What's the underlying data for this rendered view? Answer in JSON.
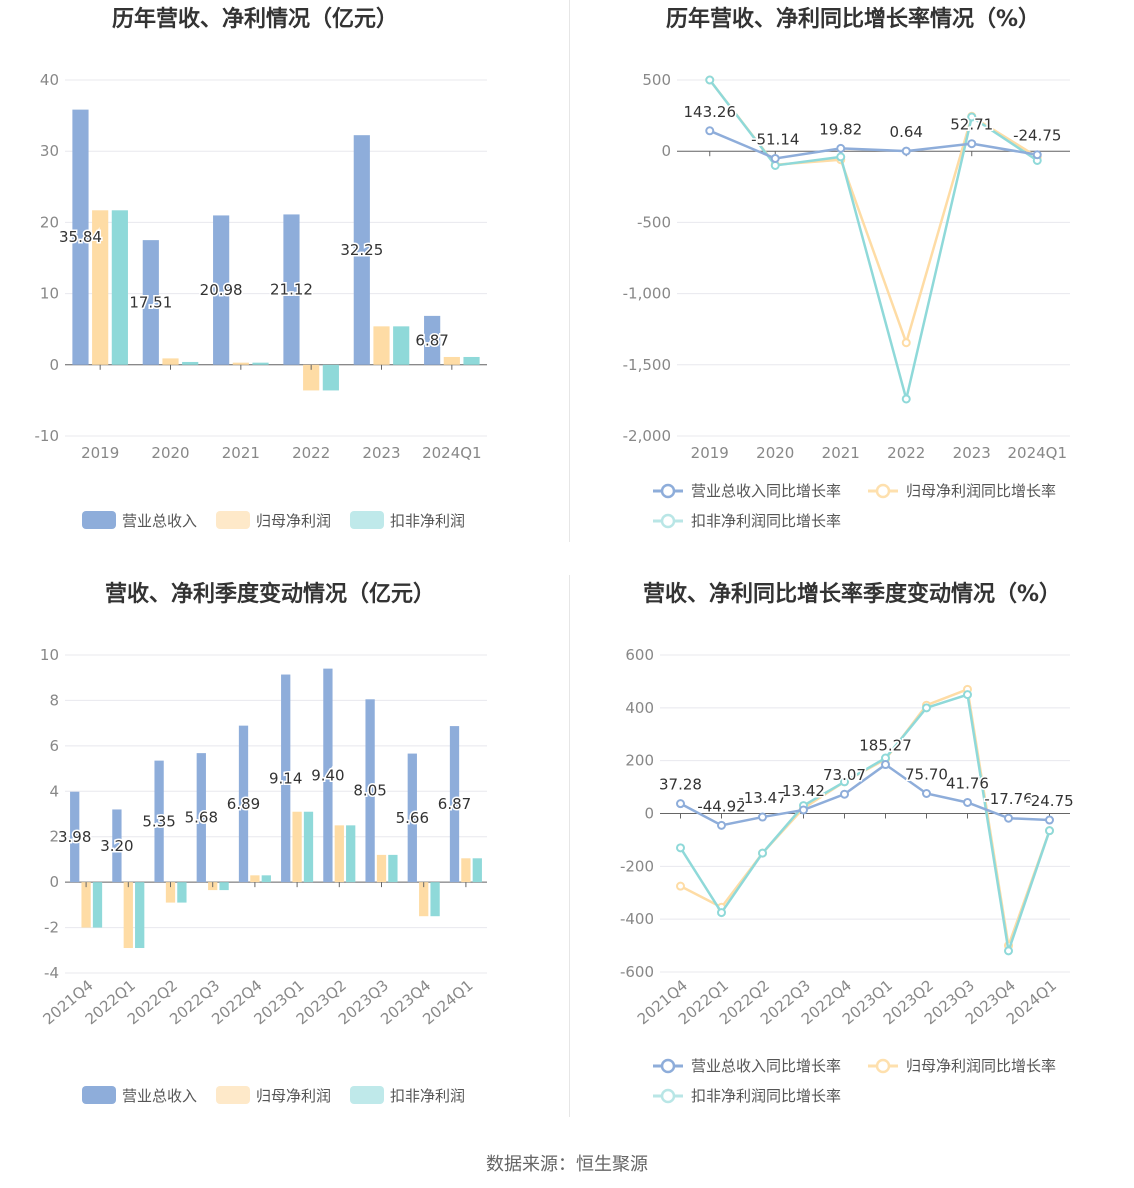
{
  "footer": {
    "source": "数据来源：恒生聚源"
  },
  "colors": {
    "revenue": "#8eadda",
    "net_profit": "#fedca5",
    "deducted_profit": "#8fd9d9",
    "grid": "#e8e8ee",
    "axis": "#666666"
  },
  "chart_data": [
    {
      "id": "annual_amount",
      "type": "bar",
      "title": "历年营收、净利情况（亿元）",
      "categories": [
        "2019",
        "2020",
        "2021",
        "2022",
        "2023",
        "2024Q1"
      ],
      "ylim": [
        -10,
        40
      ],
      "yticks": [
        -10,
        0,
        10,
        20,
        30,
        40
      ],
      "ytick_labels": [
        "-10",
        "0",
        "10",
        "20",
        "30",
        "40"
      ],
      "series": [
        {
          "name": "营业总收入",
          "values": [
            35.84,
            17.51,
            20.98,
            21.12,
            32.25,
            6.87
          ],
          "labels": [
            "35.84",
            "17.51",
            "20.98",
            "21.12",
            "32.25",
            "6.87"
          ]
        },
        {
          "name": "归母净利润",
          "values": [
            21.7,
            0.9,
            0.3,
            -3.6,
            5.4,
            1.1
          ]
        },
        {
          "name": "扣非净利润",
          "values": [
            21.7,
            0.4,
            0.3,
            -3.6,
            5.4,
            1.1
          ]
        }
      ],
      "legend": "bottom"
    },
    {
      "id": "annual_growth",
      "type": "line",
      "title": "历年营收、净利同比增长率情况（%）",
      "categories": [
        "2019",
        "2020",
        "2021",
        "2022",
        "2023",
        "2024Q1"
      ],
      "ylim": [
        -2000,
        500
      ],
      "yticks": [
        -2000,
        -1500,
        -1000,
        -500,
        0,
        500
      ],
      "ytick_labels": [
        "-2,000",
        "-1,500",
        "-1,000",
        "-500",
        "0",
        "500"
      ],
      "series": [
        {
          "name": "营业总收入同比增长率",
          "values": [
            143.26,
            -51.14,
            19.82,
            0.64,
            52.71,
            -24.75
          ],
          "labels": [
            "143.26",
            "-51.14",
            "19.82",
            "0.64",
            "52.71",
            "-24.75"
          ]
        },
        {
          "name": "归母净利润同比增长率",
          "values": [
            500,
            -95,
            -60,
            -1345,
            245,
            -40
          ]
        },
        {
          "name": "扣非净利润同比增长率",
          "values": [
            500,
            -100,
            -40,
            -1740,
            240,
            -65
          ]
        }
      ],
      "legend": "bottom"
    },
    {
      "id": "quarterly_amount",
      "type": "bar",
      "title": "营收、净利季度变动情况（亿元）",
      "categories": [
        "2021Q4",
        "2022Q1",
        "2022Q2",
        "2022Q3",
        "2022Q4",
        "2023Q1",
        "2023Q2",
        "2023Q3",
        "2023Q4",
        "2024Q1"
      ],
      "ylim": [
        -4,
        10
      ],
      "yticks": [
        -4,
        -2,
        0,
        2,
        4,
        6,
        8,
        10
      ],
      "ytick_labels": [
        "-4",
        "-2",
        "0",
        "2",
        "4",
        "6",
        "8",
        "10"
      ],
      "series": [
        {
          "name": "营业总收入",
          "values": [
            3.98,
            3.2,
            5.35,
            5.68,
            6.89,
            9.14,
            9.4,
            8.05,
            5.66,
            6.87
          ],
          "labels": [
            "3.98",
            "3.20",
            "5.35",
            "5.68",
            "6.89",
            "9.14",
            "9.40",
            "8.05",
            "5.66",
            "6.87"
          ]
        },
        {
          "name": "归母净利润",
          "values": [
            -2.0,
            -2.9,
            -0.9,
            -0.35,
            0.3,
            3.1,
            2.5,
            1.2,
            -1.5,
            1.05
          ]
        },
        {
          "name": "扣非净利润",
          "values": [
            -2.0,
            -2.9,
            -0.9,
            -0.35,
            0.3,
            3.1,
            2.5,
            1.2,
            -1.5,
            1.05
          ]
        }
      ],
      "legend": "bottom"
    },
    {
      "id": "quarterly_growth",
      "type": "line",
      "title": "营收、净利同比增长率季度变动情况（%）",
      "categories": [
        "2021Q4",
        "2022Q1",
        "2022Q2",
        "2022Q3",
        "2022Q4",
        "2023Q1",
        "2023Q2",
        "2023Q3",
        "2023Q4",
        "2024Q1"
      ],
      "ylim": [
        -600,
        600
      ],
      "yticks": [
        -600,
        -400,
        -200,
        0,
        200,
        400,
        600
      ],
      "ytick_labels": [
        "-600",
        "-400",
        "-200",
        "0",
        "200",
        "400",
        "600"
      ],
      "series": [
        {
          "name": "营业总收入同比增长率",
          "values": [
            37.28,
            -44.92,
            -13.47,
            13.42,
            73.07,
            185.27,
            75.7,
            41.76,
            -17.76,
            -24.75
          ],
          "labels": [
            "37.28",
            "-44.92",
            "-13.47",
            "13.42",
            "73.07",
            "185.27",
            "75.70",
            "41.76",
            "-17.76",
            "-24.75"
          ]
        },
        {
          "name": "归母净利润同比增长率",
          "values": [
            -275,
            -355,
            -150,
            20,
            120,
            205,
            410,
            470,
            -500,
            -65
          ]
        },
        {
          "name": "扣非净利润同比增长率",
          "values": [
            -130,
            -375,
            -150,
            30,
            120,
            210,
            400,
            450,
            -520,
            -65
          ]
        }
      ],
      "legend": "bottom"
    }
  ]
}
